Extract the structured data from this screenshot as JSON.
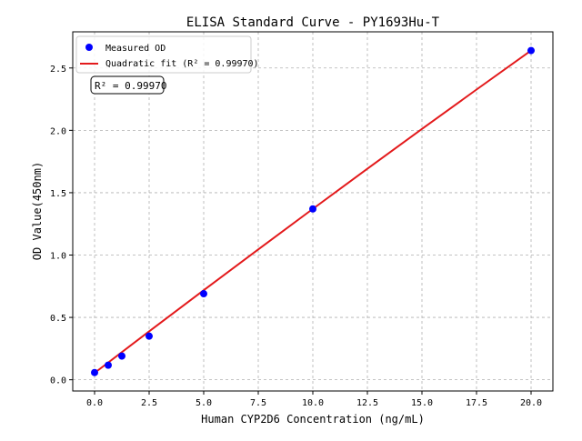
{
  "chart_data": {
    "type": "scatter",
    "title": "ELISA Standard Curve - PY1693Hu-T",
    "xlabel": "Human CYP2D6 Concentration (ng/mL)",
    "ylabel": "OD Value(450nm)",
    "xlim": [
      -1,
      21
    ],
    "ylim": [
      -0.09,
      2.79
    ],
    "xticks": [
      "0.0",
      "2.5",
      "5.0",
      "7.5",
      "10.0",
      "12.5",
      "15.0",
      "17.5",
      "20.0"
    ],
    "yticks": [
      "0.0",
      "0.5",
      "1.0",
      "1.5",
      "2.0",
      "2.5"
    ],
    "grid": true,
    "legend_position": "top-left",
    "series": [
      {
        "name": "Measured OD",
        "kind": "scatter",
        "color": "#0000ff",
        "x": [
          0,
          0.625,
          1.25,
          2.5,
          5,
          10,
          20
        ],
        "y": [
          0.058,
          0.117,
          0.19,
          0.35,
          0.69,
          1.37,
          2.64
        ]
      },
      {
        "name": "Quadratic fit (R² = 0.99970)",
        "kind": "line",
        "color": "#e31a1c",
        "x": [
          0,
          2.5,
          5,
          7.5,
          10,
          12.5,
          15,
          17.5,
          20
        ],
        "y": [
          0.055,
          0.388,
          0.718,
          1.045,
          1.37,
          1.692,
          2.011,
          2.327,
          2.64
        ]
      }
    ],
    "annotation": "R² = 0.99970"
  }
}
